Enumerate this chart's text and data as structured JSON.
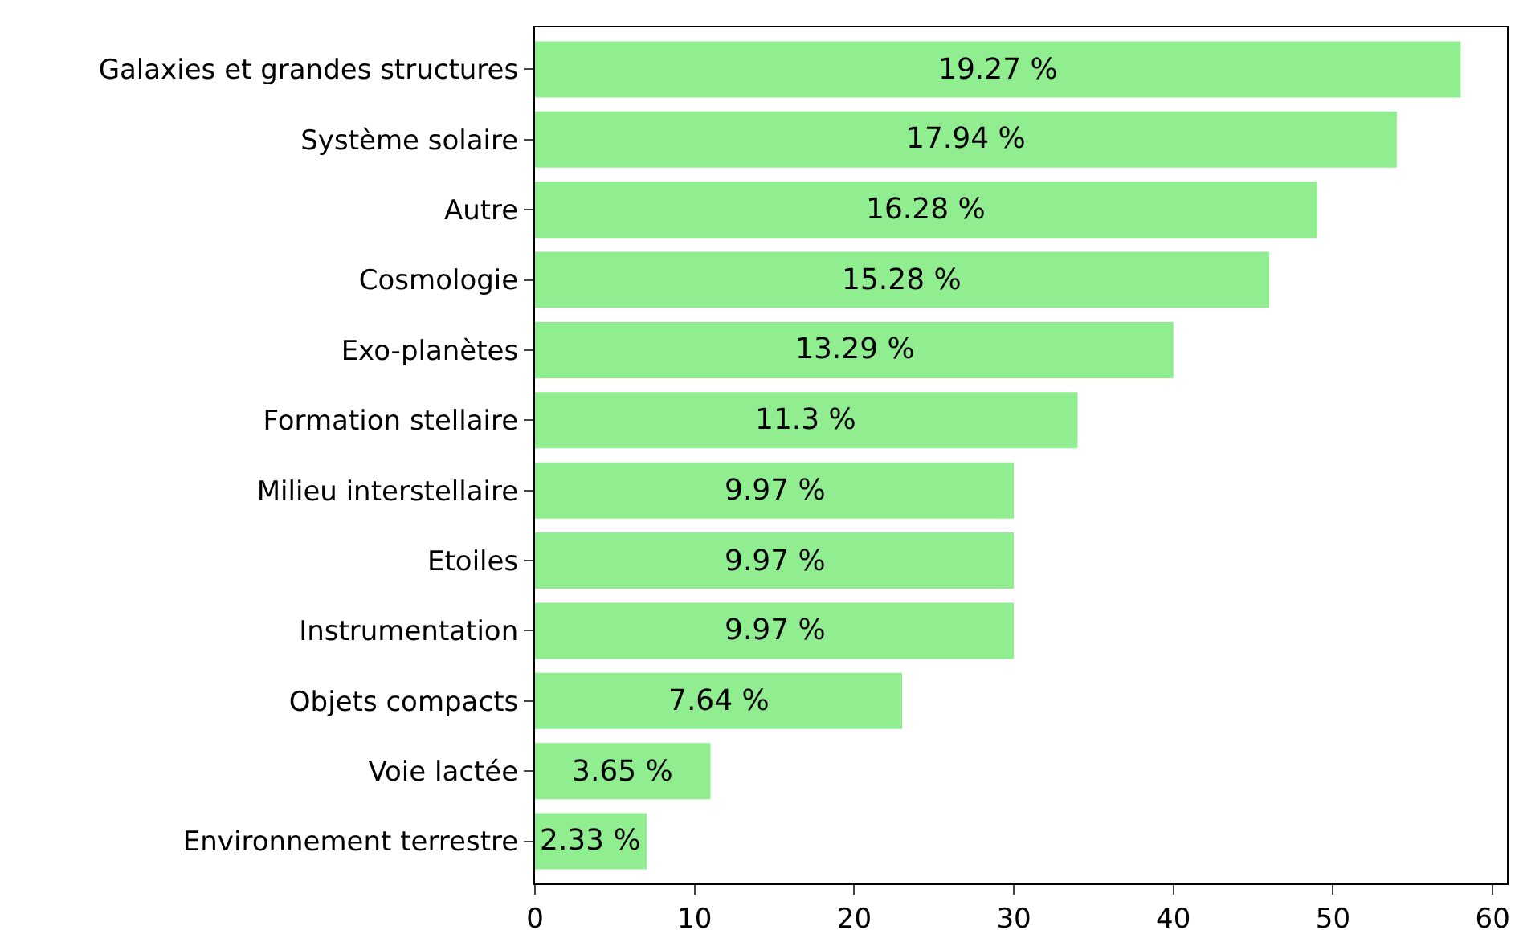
{
  "chart_data": {
    "type": "bar",
    "orientation": "horizontal",
    "categories": [
      "Galaxies et grandes structures",
      "Système solaire",
      "Autre",
      "Cosmologie",
      "Exo-planètes",
      "Formation stellaire",
      "Milieu interstellaire",
      "Etoiles",
      "Instrumentation",
      "Objets compacts",
      "Voie lactée",
      "Environnement terrestre"
    ],
    "values": [
      58,
      54,
      49,
      46,
      40,
      34,
      30,
      30,
      30,
      23,
      11,
      7
    ],
    "annotations": [
      {
        "text": "19.27 %",
        "x": 29,
        "y": "Galaxies et grandes structures"
      },
      {
        "text": "17.94 %",
        "x": 27,
        "y": "Système solaire"
      },
      {
        "text": "16.28 %",
        "x": 24.5,
        "y": "Autre"
      },
      {
        "text": "15.28 %",
        "x": 23,
        "y": "Cosmologie"
      },
      {
        "text": "13.29 %",
        "x": 20,
        "y": "Exo-planètes"
      },
      {
        "text": "11.3 %",
        "x": 17,
        "y": "Formation stellaire"
      },
      {
        "text": "9.97 %",
        "x": 15,
        "y": "Milieu interstellaire"
      },
      {
        "text": "9.97 %",
        "x": 15,
        "y": "Etoiles"
      },
      {
        "text": "9.97 %",
        "x": 15,
        "y": "Instrumentation"
      },
      {
        "text": "7.64 %",
        "x": 11.5,
        "y": "Objets compacts"
      },
      {
        "text": "3.65 %",
        "x": 5.5,
        "y": "Voie lactée"
      },
      {
        "text": "2.33 %",
        "x": 3.5,
        "y": "Environnement terrestre"
      }
    ],
    "color": "#90ee90",
    "xlim": [
      0,
      60.9
    ],
    "xticks": [
      0,
      10,
      20,
      30,
      40,
      50,
      60
    ],
    "grid": false,
    "legend": false
  }
}
